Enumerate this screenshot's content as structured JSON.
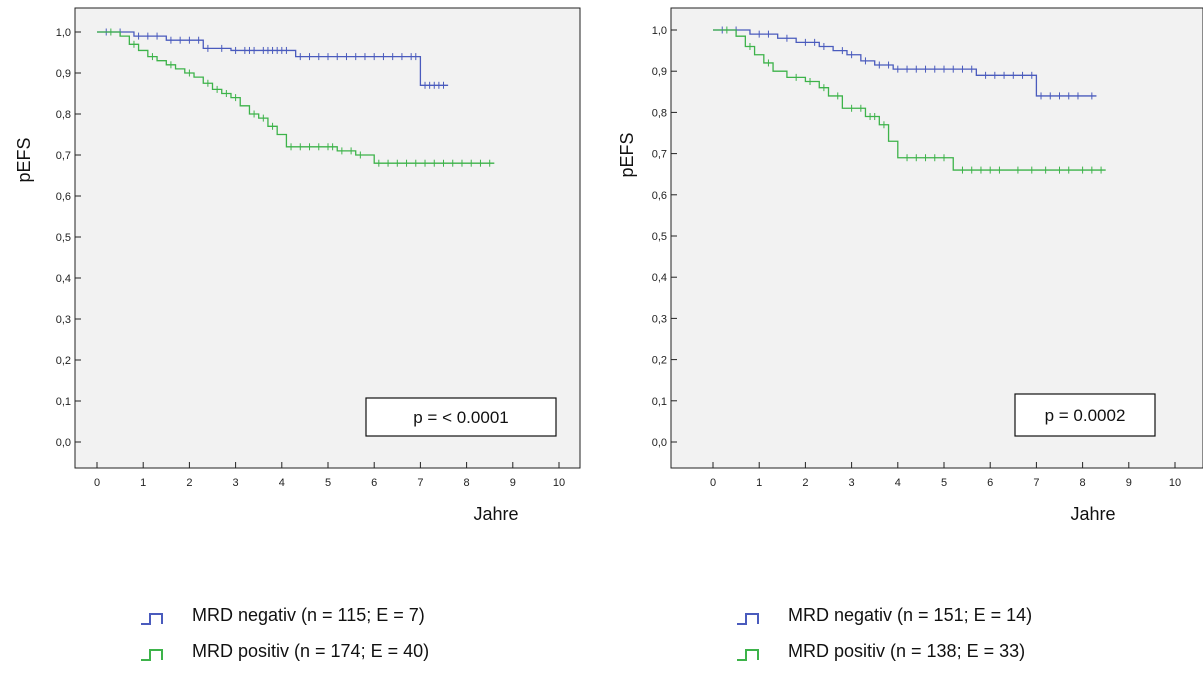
{
  "chart_data": [
    {
      "type": "line",
      "subtype": "kaplan-meier",
      "ylabel": "pEFS",
      "xlabel": "Jahre",
      "xlim": [
        0,
        10
      ],
      "ylim": [
        0,
        1
      ],
      "xticks": [
        "0",
        "1",
        "2",
        "3",
        "4",
        "5",
        "6",
        "7",
        "8",
        "9",
        "10"
      ],
      "yticks": [
        "0,0",
        "0,1",
        "0,2",
        "0,3",
        "0,4",
        "0,5",
        "0,6",
        "0,7",
        "0,8",
        "0,9",
        "1,0"
      ],
      "annotation": "p = < 0.0001",
      "series": [
        {
          "name": "MRD negativ (n = 115; E = 7)",
          "color": "#4a5bbd",
          "steps": [
            [
              0,
              1.0
            ],
            [
              0.8,
              0.99
            ],
            [
              1.5,
              0.98
            ],
            [
              2.3,
              0.96
            ],
            [
              2.9,
              0.955
            ],
            [
              4.3,
              0.94
            ],
            [
              7.0,
              0.94
            ],
            [
              7.0,
              0.87
            ],
            [
              7.6,
              0.87
            ]
          ],
          "censors": [
            0.2,
            0.5,
            0.9,
            1.1,
            1.3,
            1.6,
            1.8,
            2.0,
            2.2,
            2.4,
            2.7,
            3.0,
            3.2,
            3.3,
            3.4,
            3.6,
            3.7,
            3.8,
            3.9,
            4.0,
            4.1,
            4.4,
            4.6,
            4.8,
            5.0,
            5.2,
            5.4,
            5.6,
            5.8,
            6.0,
            6.2,
            6.4,
            6.6,
            6.8,
            6.9,
            7.1,
            7.2,
            7.3,
            7.4,
            7.5
          ]
        },
        {
          "name": "MRD positiv (n = 174; E = 40)",
          "color": "#3db34a",
          "steps": [
            [
              0,
              1.0
            ],
            [
              0.5,
              0.99
            ],
            [
              0.7,
              0.97
            ],
            [
              0.9,
              0.955
            ],
            [
              1.1,
              0.94
            ],
            [
              1.3,
              0.93
            ],
            [
              1.5,
              0.92
            ],
            [
              1.7,
              0.91
            ],
            [
              1.9,
              0.9
            ],
            [
              2.1,
              0.89
            ],
            [
              2.3,
              0.875
            ],
            [
              2.5,
              0.86
            ],
            [
              2.7,
              0.85
            ],
            [
              2.9,
              0.84
            ],
            [
              3.1,
              0.82
            ],
            [
              3.3,
              0.8
            ],
            [
              3.5,
              0.79
            ],
            [
              3.7,
              0.77
            ],
            [
              3.9,
              0.75
            ],
            [
              4.1,
              0.72
            ],
            [
              5.2,
              0.71
            ],
            [
              5.6,
              0.7
            ],
            [
              6.0,
              0.68
            ],
            [
              8.6,
              0.68
            ]
          ],
          "censors": [
            0.3,
            0.8,
            1.2,
            1.6,
            2.0,
            2.4,
            2.6,
            2.8,
            3.0,
            3.4,
            3.6,
            3.8,
            4.2,
            4.4,
            4.6,
            4.8,
            5.0,
            5.1,
            5.3,
            5.5,
            5.7,
            6.1,
            6.3,
            6.5,
            6.7,
            6.9,
            7.1,
            7.3,
            7.5,
            7.7,
            7.9,
            8.1,
            8.3,
            8.5
          ]
        }
      ]
    },
    {
      "type": "line",
      "subtype": "kaplan-meier",
      "ylabel": "pEFS",
      "xlabel": "Jahre",
      "xlim": [
        0,
        10
      ],
      "ylim": [
        0,
        1
      ],
      "xticks": [
        "0",
        "1",
        "2",
        "3",
        "4",
        "5",
        "6",
        "7",
        "8",
        "9",
        "10"
      ],
      "yticks": [
        "0,0",
        "0,1",
        "0,2",
        "0,3",
        "0,4",
        "0,5",
        "0,6",
        "0,7",
        "0,8",
        "0,9",
        "1,0"
      ],
      "annotation": "p = 0.0002",
      "series": [
        {
          "name": "MRD negativ (n = 151; E = 14)",
          "color": "#4a5bbd",
          "steps": [
            [
              0,
              1.0
            ],
            [
              0.8,
              0.99
            ],
            [
              1.4,
              0.98
            ],
            [
              1.8,
              0.97
            ],
            [
              2.3,
              0.96
            ],
            [
              2.6,
              0.95
            ],
            [
              2.9,
              0.94
            ],
            [
              3.2,
              0.925
            ],
            [
              3.5,
              0.915
            ],
            [
              3.9,
              0.905
            ],
            [
              5.7,
              0.89
            ],
            [
              7.0,
              0.89
            ],
            [
              7.0,
              0.84
            ],
            [
              8.3,
              0.84
            ]
          ],
          "censors": [
            0.2,
            0.5,
            1.0,
            1.2,
            1.6,
            2.0,
            2.2,
            2.4,
            2.8,
            3.0,
            3.3,
            3.6,
            3.8,
            4.0,
            4.2,
            4.4,
            4.6,
            4.8,
            5.0,
            5.2,
            5.4,
            5.6,
            5.9,
            6.1,
            6.3,
            6.5,
            6.7,
            6.9,
            7.1,
            7.3,
            7.5,
            7.7,
            7.9,
            8.2
          ]
        },
        {
          "name": "MRD positiv (n = 138; E = 33)",
          "color": "#3db34a",
          "steps": [
            [
              0,
              1.0
            ],
            [
              0.5,
              0.985
            ],
            [
              0.7,
              0.96
            ],
            [
              0.9,
              0.94
            ],
            [
              1.1,
              0.92
            ],
            [
              1.3,
              0.9
            ],
            [
              1.6,
              0.885
            ],
            [
              2.0,
              0.875
            ],
            [
              2.3,
              0.86
            ],
            [
              2.5,
              0.84
            ],
            [
              2.8,
              0.81
            ],
            [
              3.3,
              0.79
            ],
            [
              3.6,
              0.77
            ],
            [
              3.8,
              0.73
            ],
            [
              4.0,
              0.69
            ],
            [
              5.2,
              0.66
            ],
            [
              8.5,
              0.66
            ]
          ],
          "censors": [
            0.3,
            0.8,
            1.2,
            1.8,
            2.1,
            2.4,
            2.7,
            3.0,
            3.2,
            3.4,
            3.5,
            3.7,
            4.2,
            4.4,
            4.6,
            4.8,
            5.0,
            5.4,
            5.6,
            5.8,
            6.0,
            6.2,
            6.6,
            6.9,
            7.2,
            7.5,
            7.7,
            8.0,
            8.2,
            8.4
          ]
        }
      ]
    }
  ]
}
